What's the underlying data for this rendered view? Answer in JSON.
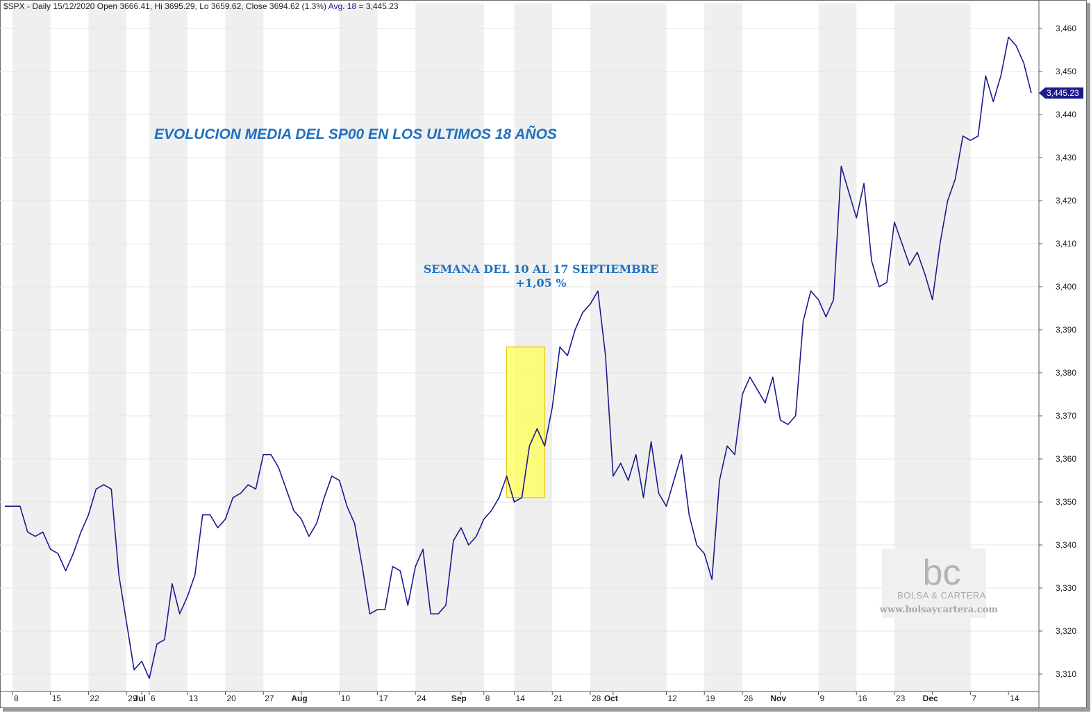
{
  "header": {
    "symbol_line": "$SPX - Daily 15/12/2020 Open 3666.41, Hi 3695.29, Lo 3659.62, Close 3694.62 (1.3%)",
    "avg_label": "Avg. 18",
    "avg_value": " = 3,445.23"
  },
  "annotations": {
    "title": "EVOLUCION MEDIA DEL SP00 EN LOS ULTIMOS 18 AÑOS",
    "note_line1": "SEMANA DEL 10 AL 17 SEPTIEMBRE",
    "note_line2": "+1,05 %"
  },
  "watermark": {
    "logo_text": "bc",
    "name": "BOLSA & CARTERA",
    "url": "www.bolsaycartera.com"
  },
  "colors": {
    "line": "#1b1b8a",
    "highlight_fill": "#ffff55",
    "highlight_stroke": "#e0c000",
    "annotation": "#1f6fc0",
    "week_shade": "#efefef",
    "badge": "#1b1b8a"
  },
  "last_value_badge": "3,445.23",
  "chart_data": {
    "type": "line",
    "title": "",
    "ylim": [
      3307,
      3462
    ],
    "y_ticks": [
      "3,460",
      "3,450",
      "3,440",
      "3,430",
      "3,420",
      "3,410",
      "3,400",
      "3,390",
      "3,380",
      "3,370",
      "3,360",
      "3,350",
      "3,340",
      "3,330",
      "3,320",
      "3,310"
    ],
    "y_tick_values": [
      3460,
      3450,
      3440,
      3430,
      3420,
      3410,
      3400,
      3390,
      3380,
      3370,
      3360,
      3350,
      3340,
      3330,
      3320,
      3310
    ],
    "x_ticks": [
      {
        "label": "8",
        "month": false,
        "index": 1
      },
      {
        "label": "15",
        "month": false,
        "index": 6
      },
      {
        "label": "22",
        "month": false,
        "index": 11
      },
      {
        "label": "29",
        "month": false,
        "index": 16
      },
      {
        "label": "Jul",
        "month": true,
        "index": 18
      },
      {
        "label": "6",
        "month": false,
        "index": 19
      },
      {
        "label": "13",
        "month": false,
        "index": 24
      },
      {
        "label": "20",
        "month": false,
        "index": 29
      },
      {
        "label": "27",
        "month": false,
        "index": 34
      },
      {
        "label": "Aug",
        "month": true,
        "index": 39
      },
      {
        "label": "10",
        "month": false,
        "index": 44
      },
      {
        "label": "17",
        "month": false,
        "index": 49
      },
      {
        "label": "24",
        "month": false,
        "index": 54
      },
      {
        "label": "Sep",
        "month": true,
        "index": 60
      },
      {
        "label": "8",
        "month": false,
        "index": 63
      },
      {
        "label": "14",
        "month": false,
        "index": 67
      },
      {
        "label": "21",
        "month": false,
        "index": 72
      },
      {
        "label": "28",
        "month": false,
        "index": 77
      },
      {
        "label": "Oct",
        "month": true,
        "index": 80
      },
      {
        "label": "12",
        "month": false,
        "index": 87
      },
      {
        "label": "19",
        "month": false,
        "index": 92
      },
      {
        "label": "26",
        "month": false,
        "index": 97
      },
      {
        "label": "Nov",
        "month": true,
        "index": 102
      },
      {
        "label": "9",
        "month": false,
        "index": 107
      },
      {
        "label": "16",
        "month": false,
        "index": 112
      },
      {
        "label": "23",
        "month": false,
        "index": 117
      },
      {
        "label": "Dec",
        "month": true,
        "index": 122
      },
      {
        "label": "7",
        "month": false,
        "index": 127
      },
      {
        "label": "14",
        "month": false,
        "index": 132
      }
    ],
    "highlight": {
      "from_index": 66,
      "to_index": 71,
      "low": 3351,
      "high": 3386
    },
    "series": [
      {
        "values": [
          3349,
          3349,
          3349,
          3343,
          3342,
          3343,
          3339,
          3338,
          3334,
          3338,
          3343,
          3347,
          3353,
          3354,
          3353,
          3333,
          3322,
          3311,
          3313,
          3309,
          3317,
          3318,
          3331,
          3324,
          3328,
          3333,
          3347,
          3347,
          3344,
          3346,
          3351,
          3352,
          3354,
          3353,
          3361,
          3361,
          3358,
          3353,
          3348,
          3346,
          3342,
          3345,
          3351,
          3356,
          3355,
          3349,
          3345,
          3335,
          3324,
          3325,
          3325,
          3335,
          3334,
          3326,
          3335,
          3339,
          3324,
          3324,
          3326,
          3341,
          3344,
          3340,
          3342,
          3346,
          3348,
          3351,
          3356,
          3350,
          3351,
          3363,
          3367,
          3363,
          3372,
          3386,
          3384,
          3390,
          3394,
          3396,
          3399,
          3384,
          3356,
          3359,
          3355,
          3361,
          3351,
          3364,
          3352,
          3349,
          3355,
          3361,
          3347,
          3340,
          3338,
          3332,
          3355,
          3363,
          3361,
          3375,
          3379,
          3376,
          3373,
          3379,
          3369,
          3368,
          3370,
          3392,
          3399,
          3397,
          3393,
          3397,
          3428,
          3422,
          3416,
          3424,
          3406,
          3400,
          3401,
          3415,
          3410,
          3405,
          3408,
          3403,
          3397,
          3410,
          3420,
          3425,
          3435,
          3434,
          3435,
          3449,
          3443,
          3449,
          3458,
          3456,
          3452,
          3445
        ]
      }
    ]
  }
}
